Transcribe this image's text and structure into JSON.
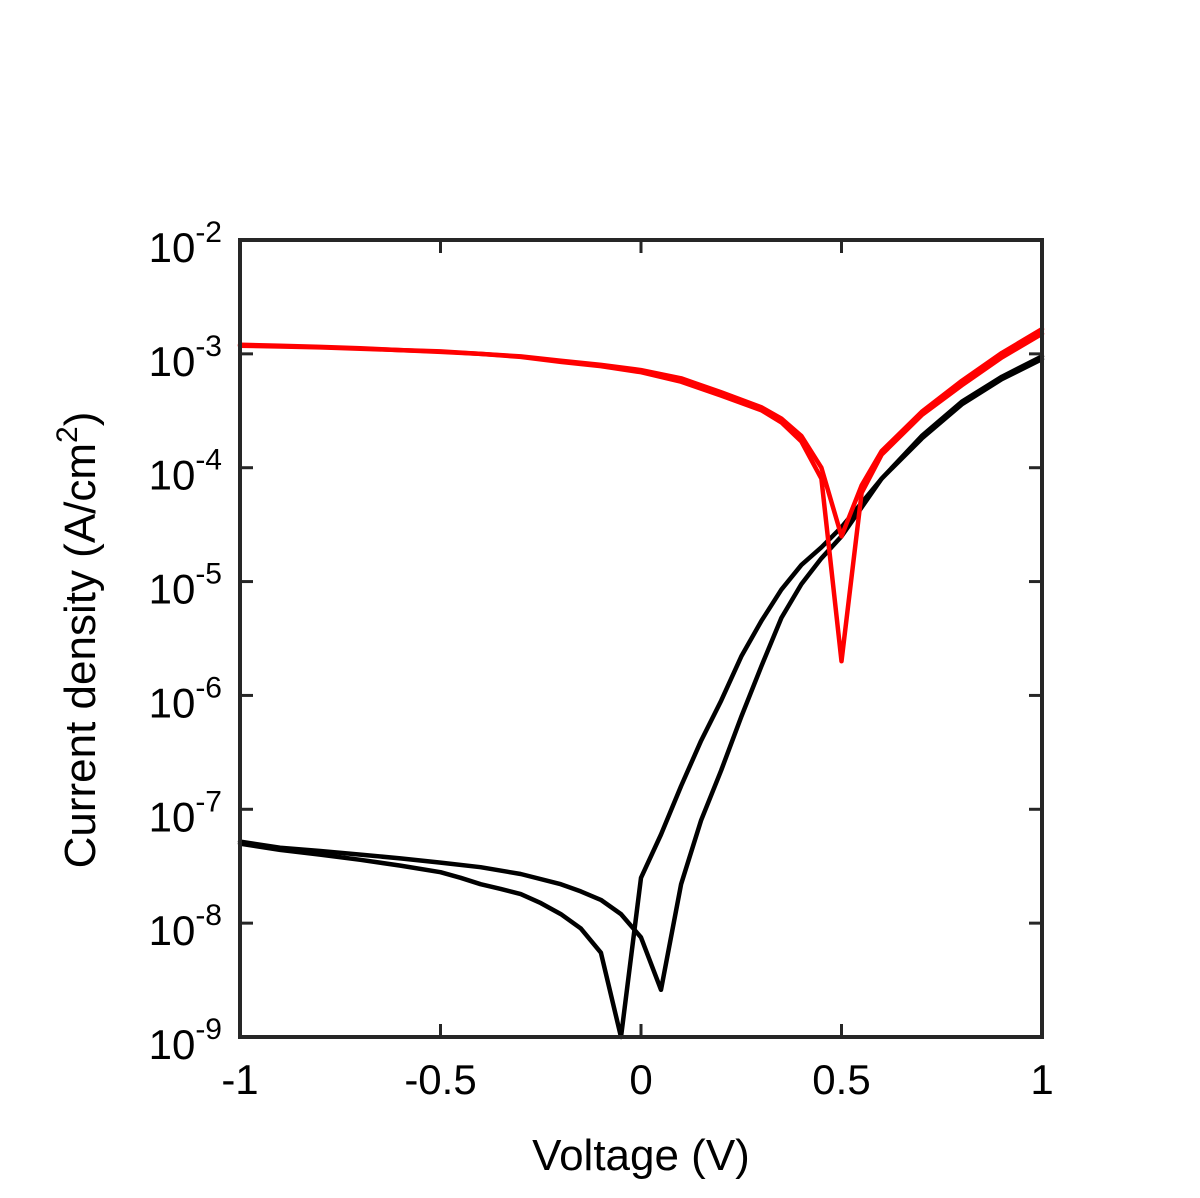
{
  "chart_data": {
    "type": "line",
    "xlabel": "Voltage (V)",
    "ylabel": "Current density (A/cm",
    "ylabel_sup": "2",
    "ylabel_close": ")",
    "xlim": [
      -1,
      1
    ],
    "ylim": [
      1e-09,
      0.01
    ],
    "yscale": "log",
    "grid": false,
    "x_ticks": [
      -1,
      -0.5,
      0,
      0.5,
      1
    ],
    "x_tick_labels": [
      "-1",
      "-0.5",
      "0",
      "0.5",
      "1"
    ],
    "y_ticks": [
      {
        "value": 0.01,
        "base": "10",
        "exp": "-2"
      },
      {
        "value": 0.001,
        "base": "10",
        "exp": "-3"
      },
      {
        "value": 0.0001,
        "base": "10",
        "exp": "-4"
      },
      {
        "value": 1e-05,
        "base": "10",
        "exp": "-5"
      },
      {
        "value": 1e-06,
        "base": "10",
        "exp": "-6"
      },
      {
        "value": 1e-07,
        "base": "10",
        "exp": "-7"
      },
      {
        "value": 1e-08,
        "base": "10",
        "exp": "-8"
      },
      {
        "value": 1e-09,
        "base": "10",
        "exp": "-9"
      }
    ],
    "series": [
      {
        "color": "#000000",
        "points": [
          [
            -1,
            5e-08
          ],
          [
            -0.9,
            4.4e-08
          ],
          [
            -0.8,
            4e-08
          ],
          [
            -0.7,
            3.6e-08
          ],
          [
            -0.6,
            3.2e-08
          ],
          [
            -0.5,
            2.8e-08
          ],
          [
            -0.45,
            2.5e-08
          ],
          [
            -0.4,
            2.2e-08
          ],
          [
            -0.35,
            2e-08
          ],
          [
            -0.3,
            1.8e-08
          ],
          [
            -0.25,
            1.5e-08
          ],
          [
            -0.2,
            1.2e-08
          ],
          [
            -0.15,
            9e-09
          ],
          [
            -0.1,
            5.5e-09
          ],
          [
            -0.05,
            1e-09
          ],
          [
            0,
            2.5e-08
          ],
          [
            0.05,
            6e-08
          ],
          [
            0.1,
            1.6e-07
          ],
          [
            0.15,
            4e-07
          ],
          [
            0.2,
            9e-07
          ],
          [
            0.25,
            2.2e-06
          ],
          [
            0.3,
            4.5e-06
          ],
          [
            0.35,
            8.5e-06
          ],
          [
            0.4,
            1.4e-05
          ],
          [
            0.45,
            2e-05
          ],
          [
            0.5,
            3e-05
          ],
          [
            0.6,
            8e-05
          ],
          [
            0.7,
            0.00018
          ],
          [
            0.8,
            0.00036
          ],
          [
            0.9,
            0.0006
          ],
          [
            1,
            0.0009
          ]
        ]
      },
      {
        "color": "#000000",
        "points": [
          [
            -1,
            5.2e-08
          ],
          [
            -0.9,
            4.6e-08
          ],
          [
            -0.8,
            4.3e-08
          ],
          [
            -0.7,
            4e-08
          ],
          [
            -0.6,
            3.7e-08
          ],
          [
            -0.5,
            3.4e-08
          ],
          [
            -0.4,
            3.1e-08
          ],
          [
            -0.3,
            2.7e-08
          ],
          [
            -0.2,
            2.2e-08
          ],
          [
            -0.15,
            1.9e-08
          ],
          [
            -0.1,
            1.6e-08
          ],
          [
            -0.05,
            1.2e-08
          ],
          [
            0,
            7.5e-09
          ],
          [
            0.05,
            2.6e-09
          ],
          [
            0.1,
            2.2e-08
          ],
          [
            0.15,
            8e-08
          ],
          [
            0.2,
            2.2e-07
          ],
          [
            0.25,
            6.5e-07
          ],
          [
            0.3,
            1.8e-06
          ],
          [
            0.35,
            4.8e-06
          ],
          [
            0.4,
            9.5e-06
          ],
          [
            0.45,
            1.6e-05
          ],
          [
            0.5,
            2.5e-05
          ],
          [
            0.6,
            8e-05
          ],
          [
            0.7,
            0.00019
          ],
          [
            0.8,
            0.00038
          ],
          [
            0.9,
            0.00063
          ],
          [
            1,
            0.00095
          ]
        ]
      },
      {
        "color": "#ff0000",
        "points": [
          [
            -1,
            0.0012
          ],
          [
            -0.9,
            0.00118
          ],
          [
            -0.8,
            0.00115
          ],
          [
            -0.7,
            0.00112
          ],
          [
            -0.6,
            0.00108
          ],
          [
            -0.5,
            0.00104
          ],
          [
            -0.4,
            0.001
          ],
          [
            -0.3,
            0.00094
          ],
          [
            -0.2,
            0.00085
          ],
          [
            -0.1,
            0.00078
          ],
          [
            0,
            0.00069
          ],
          [
            0.1,
            0.00057
          ],
          [
            0.2,
            0.00043
          ],
          [
            0.3,
            0.00032
          ],
          [
            0.35,
            0.00025
          ],
          [
            0.4,
            0.00017
          ],
          [
            0.45,
            8e-05
          ],
          [
            0.5,
            2e-06
          ],
          [
            0.55,
            6e-05
          ],
          [
            0.6,
            0.00013
          ],
          [
            0.7,
            0.00029
          ],
          [
            0.8,
            0.00053
          ],
          [
            0.9,
            0.00093
          ],
          [
            1,
            0.0015
          ]
        ]
      },
      {
        "color": "#ff0000",
        "points": [
          [
            -1,
            0.00118
          ],
          [
            -0.9,
            0.00116
          ],
          [
            -0.8,
            0.00114
          ],
          [
            -0.7,
            0.00111
          ],
          [
            -0.6,
            0.00108
          ],
          [
            -0.5,
            0.00105
          ],
          [
            -0.4,
            0.001
          ],
          [
            -0.3,
            0.00095
          ],
          [
            -0.2,
            0.00087
          ],
          [
            -0.1,
            0.0008
          ],
          [
            0,
            0.00072
          ],
          [
            0.1,
            0.00061
          ],
          [
            0.2,
            0.00046
          ],
          [
            0.3,
            0.00034
          ],
          [
            0.35,
            0.00027
          ],
          [
            0.4,
            0.00019
          ],
          [
            0.45,
            0.0001
          ],
          [
            0.5,
            2.5e-05
          ],
          [
            0.55,
            7e-05
          ],
          [
            0.6,
            0.00014
          ],
          [
            0.7,
            0.00031
          ],
          [
            0.8,
            0.00058
          ],
          [
            0.9,
            0.00102
          ],
          [
            1,
            0.00165
          ]
        ]
      }
    ]
  }
}
